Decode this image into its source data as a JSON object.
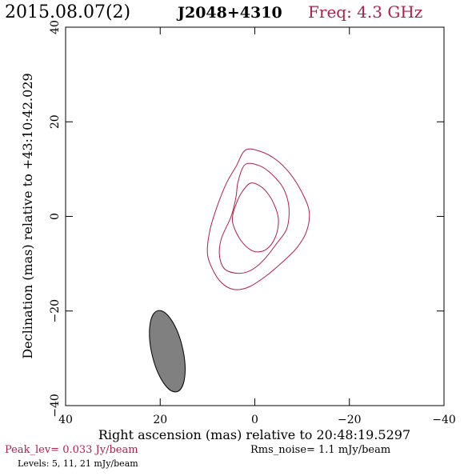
{
  "header": {
    "date": "2015.08.07(2)",
    "source": "J2048+4310",
    "freq": "Freq: 4.3 GHz"
  },
  "footer": {
    "peak": "Peak_lev=  0.033 Jy/beam",
    "rms": "Rms_noise=  1.1 mJy/beam",
    "levels": "Levels:   5,  11,  21 mJy/beam"
  },
  "colors": {
    "accent": "#b0204a",
    "beam_fill": "#808080",
    "axis": "#000000"
  },
  "chart_data": {
    "type": "contour",
    "xlabel": "Right ascension (mas) relative to 20:48:19.5297",
    "ylabel": "Declination (mas) relative to +43:10:42.029",
    "xlim": [
      40,
      -40
    ],
    "ylim": [
      -40,
      40
    ],
    "x_ticks": [
      40,
      20,
      0,
      -20,
      -40
    ],
    "y_ticks": [
      40,
      20,
      0,
      -20,
      -40
    ],
    "x_tick_labels": [
      "40",
      "20",
      "0",
      "−20",
      "−40"
    ],
    "y_tick_labels": [
      "40",
      "20",
      "0",
      "−20",
      "−40"
    ],
    "grid": false,
    "levels_mJy": [
      5,
      11,
      21
    ],
    "contours": [
      {
        "level": 21,
        "points": [
          [
            1,
            7
          ],
          [
            -1,
            6.5
          ],
          [
            -3,
            4.5
          ],
          [
            -4.5,
            1.5
          ],
          [
            -5,
            -1
          ],
          [
            -4.5,
            -4
          ],
          [
            -3,
            -6.5
          ],
          [
            -1,
            -7.5
          ],
          [
            1,
            -7
          ],
          [
            3,
            -5
          ],
          [
            4.5,
            -2
          ],
          [
            4.7,
            0
          ],
          [
            4,
            2.5
          ],
          [
            2.8,
            5
          ],
          [
            1,
            7
          ]
        ]
      },
      {
        "level": 11,
        "points": [
          [
            2,
            11
          ],
          [
            -1,
            10.7
          ],
          [
            -3.5,
            9
          ],
          [
            -6,
            6
          ],
          [
            -7.2,
            2
          ],
          [
            -6.8,
            -2.5
          ],
          [
            -4.8,
            -5.5
          ],
          [
            -2.5,
            -8.5
          ],
          [
            -0.5,
            -10.5
          ],
          [
            1.5,
            -11.7
          ],
          [
            4,
            -12
          ],
          [
            6.5,
            -11
          ],
          [
            7.5,
            -8
          ],
          [
            7,
            -4.5
          ],
          [
            5,
            0
          ],
          [
            4,
            4
          ],
          [
            3.5,
            7.5
          ],
          [
            2,
            11
          ]
        ]
      },
      {
        "level": 5,
        "points": [
          [
            2,
            14
          ],
          [
            -1,
            13.8
          ],
          [
            -4.5,
            12
          ],
          [
            -7.5,
            9
          ],
          [
            -10,
            5
          ],
          [
            -11.5,
            1
          ],
          [
            -11,
            -3
          ],
          [
            -9,
            -6.5
          ],
          [
            -6,
            -9.5
          ],
          [
            -2.5,
            -12.5
          ],
          [
            1,
            -14.8
          ],
          [
            4,
            -15.5
          ],
          [
            6.5,
            -14.5
          ],
          [
            8.5,
            -12
          ],
          [
            10,
            -8
          ],
          [
            9.5,
            -3
          ],
          [
            8,
            2
          ],
          [
            6,
            7
          ],
          [
            4,
            10.5
          ],
          [
            2,
            14
          ]
        ]
      }
    ],
    "beam": {
      "cx": 18.5,
      "cy": -28.5,
      "major_mas": 17.6,
      "minor_mas": 6.6,
      "pa_deg": -13,
      "fill": "#808080"
    }
  }
}
